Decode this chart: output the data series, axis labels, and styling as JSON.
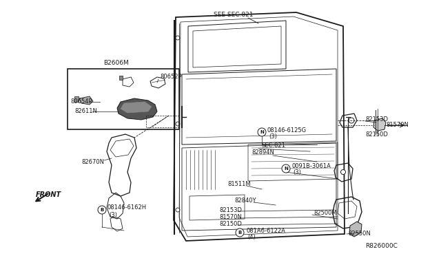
{
  "bg_color": "#ffffff",
  "line_color": "#1a1a1a",
  "fig_width": 6.4,
  "fig_height": 3.72,
  "dpi": 100,
  "ref_code": "R826000C",
  "see_sec": "SEE SEC.821",
  "front_label": "FRONT",
  "inset_label": "B2606M"
}
